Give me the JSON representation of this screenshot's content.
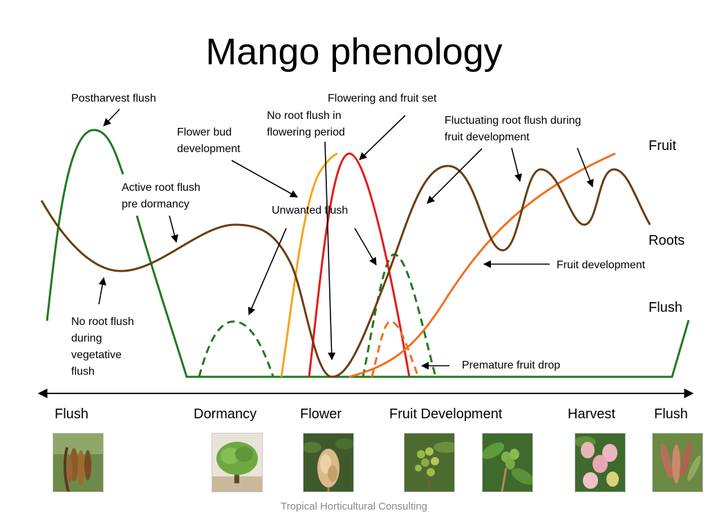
{
  "title": "Mango phenology",
  "annotations": {
    "postharvest_flush": "Postharvest flush",
    "flowering_fruit_set": "Flowering and fruit set",
    "no_root_flush_flowering": "No root flush in\nflowering period",
    "flower_bud_development": "Flower bud\ndevelopment",
    "fluctuating_root_flush": "Fluctuating root flush during\nfruit development",
    "active_root_flush": "Active root flush\npre dormancy",
    "unwanted_flush": "Unwanted flush",
    "fruit_development": "Fruit development",
    "no_root_flush_vegetative": "No root flush\nduring\nvegetative\nflush",
    "premature_fruit_drop": "Premature fruit drop"
  },
  "curve_labels": {
    "fruit": "Fruit",
    "roots": "Roots",
    "flush": "Flush"
  },
  "phases": [
    "Flush",
    "Dormancy",
    "Flower",
    "Fruit Development",
    "Harvest",
    "Flush"
  ],
  "colors": {
    "flush": "#1e7a1e",
    "roots": "#6b3d0c",
    "fruit": "#f07020",
    "flower_bud": "#f5a51c",
    "flowering": "#e31a1a"
  },
  "photos": [
    {
      "icon": "brown-leaf-flush-photo-icon"
    },
    {
      "icon": "mango-tree-photo-icon"
    },
    {
      "icon": "mango-flower-panicle-photo-icon"
    },
    {
      "icon": "fruit-set-photo-icon"
    },
    {
      "icon": "young-fruit-photo-icon"
    },
    {
      "icon": "ripe-mango-photo-icon"
    },
    {
      "icon": "new-leaf-flush-photo-icon"
    }
  ],
  "footer": "Tropical Horticultural Consulting"
}
